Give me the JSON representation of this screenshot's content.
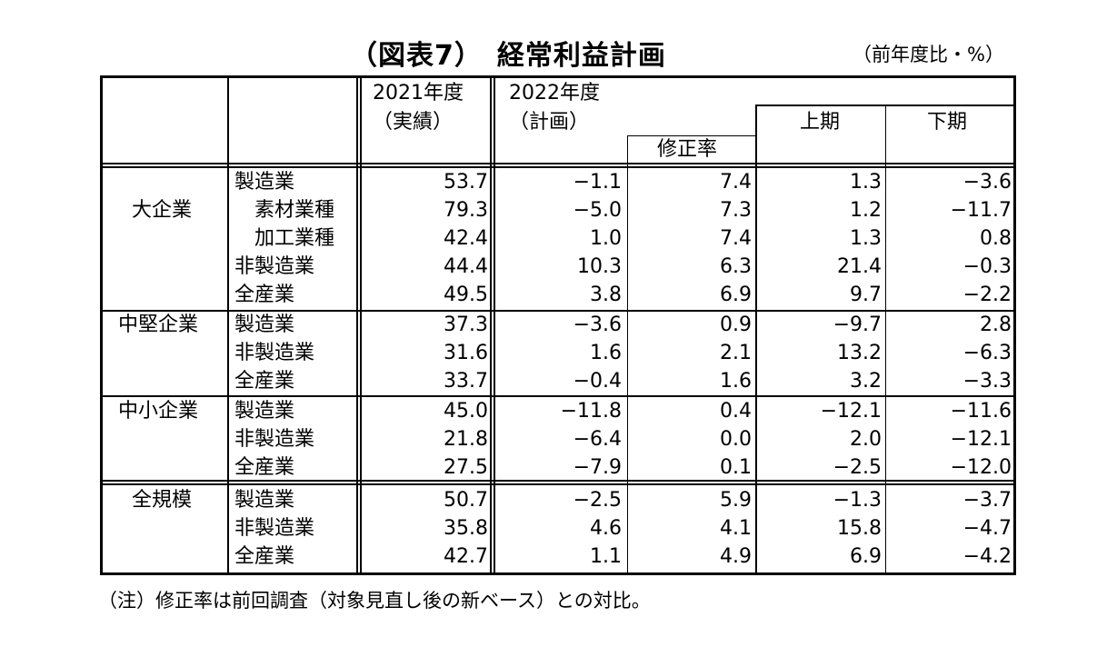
{
  "title": "（図表7）　経常利益計画",
  "unit": "（前年度比・%）",
  "note": "（注）修正率は前回調査（対象見直し後の新ベース）との対比。",
  "headers": {
    "fy2021_line1": "2021年度",
    "fy2021_line2": "（実績）",
    "fy2022_line1": "2022年度",
    "fy2022_line2": "（計画）",
    "revision": "修正率",
    "first_half": "上期",
    "second_half": "下期"
  },
  "groups": [
    {
      "name": "大企業",
      "rows": [
        {
          "label": "製造業",
          "fy2021": "53.7",
          "fy2022": "−1.1",
          "revision": "7.4",
          "first_half": "1.3",
          "second_half": "−3.6"
        },
        {
          "label": "　素材業種",
          "fy2021": "79.3",
          "fy2022": "−5.0",
          "revision": "7.3",
          "first_half": "1.2",
          "second_half": "−11.7"
        },
        {
          "label": "　加工業種",
          "fy2021": "42.4",
          "fy2022": "1.0",
          "revision": "7.4",
          "first_half": "1.3",
          "second_half": "0.8"
        },
        {
          "label": "非製造業",
          "fy2021": "44.4",
          "fy2022": "10.3",
          "revision": "6.3",
          "first_half": "21.4",
          "second_half": "−0.3"
        },
        {
          "label": "全産業",
          "fy2021": "49.5",
          "fy2022": "3.8",
          "revision": "6.9",
          "first_half": "9.7",
          "second_half": "−2.2"
        }
      ]
    },
    {
      "name": "中堅企業",
      "rows": [
        {
          "label": "製造業",
          "fy2021": "37.3",
          "fy2022": "−3.6",
          "revision": "0.9",
          "first_half": "−9.7",
          "second_half": "2.8"
        },
        {
          "label": "非製造業",
          "fy2021": "31.6",
          "fy2022": "1.6",
          "revision": "2.1",
          "first_half": "13.2",
          "second_half": "−6.3"
        },
        {
          "label": "全産業",
          "fy2021": "33.7",
          "fy2022": "−0.4",
          "revision": "1.6",
          "first_half": "3.2",
          "second_half": "−3.3"
        }
      ]
    },
    {
      "name": "中小企業",
      "rows": [
        {
          "label": "製造業",
          "fy2021": "45.0",
          "fy2022": "−11.8",
          "revision": "0.4",
          "first_half": "−12.1",
          "second_half": "−11.6"
        },
        {
          "label": "非製造業",
          "fy2021": "21.8",
          "fy2022": "−6.4",
          "revision": "0.0",
          "first_half": "2.0",
          "second_half": "−12.1"
        },
        {
          "label": "全産業",
          "fy2021": "27.5",
          "fy2022": "−7.9",
          "revision": "0.1",
          "first_half": "−2.5",
          "second_half": "−12.0"
        }
      ]
    },
    {
      "name": "全規模",
      "rows": [
        {
          "label": "製造業",
          "fy2021": "50.7",
          "fy2022": "−2.5",
          "revision": "5.9",
          "first_half": "−1.3",
          "second_half": "−3.7"
        },
        {
          "label": "非製造業",
          "fy2021": "35.8",
          "fy2022": "4.6",
          "revision": "4.1",
          "first_half": "15.8",
          "second_half": "−4.7"
        },
        {
          "label": "全産業",
          "fy2021": "42.7",
          "fy2022": "1.1",
          "revision": "4.9",
          "first_half": "6.9",
          "second_half": "−4.2"
        }
      ]
    }
  ]
}
